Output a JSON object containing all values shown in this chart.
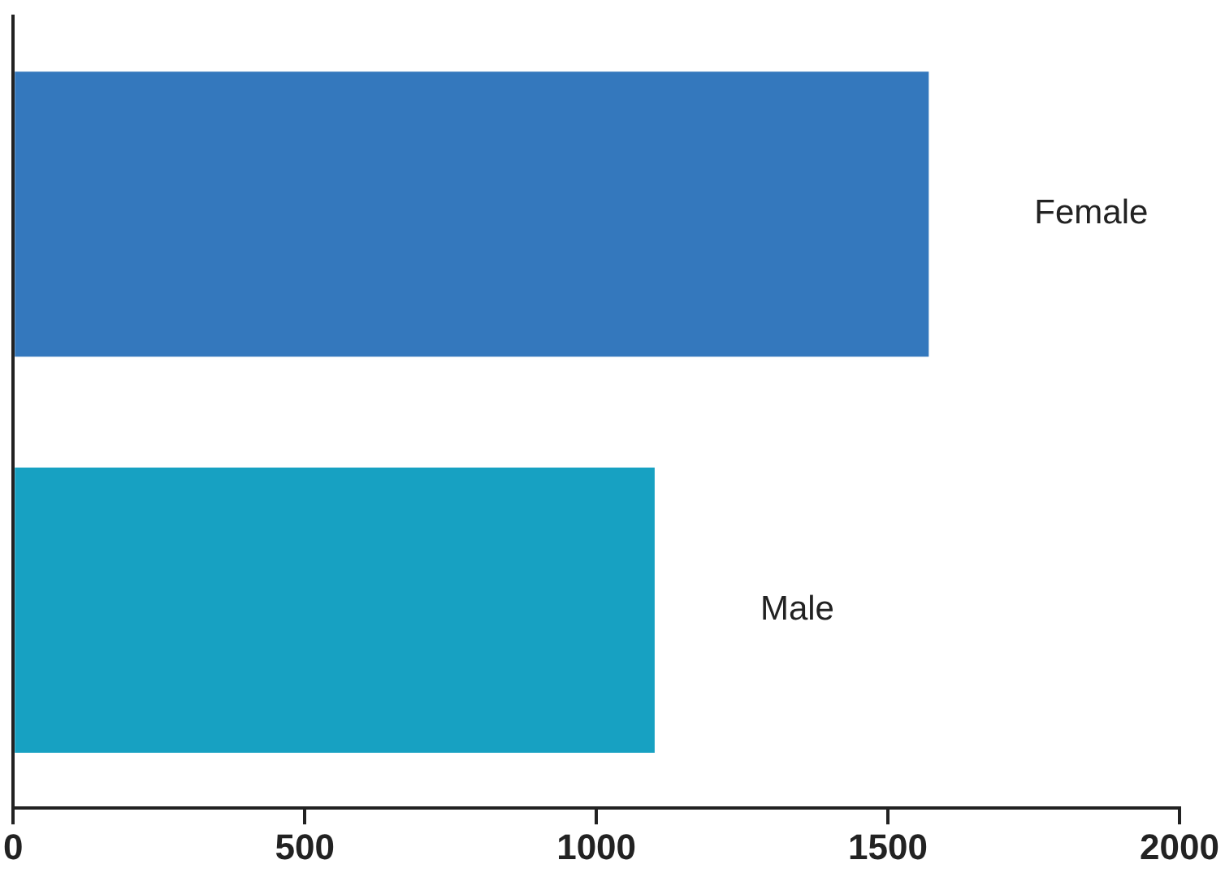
{
  "chart_data": {
    "type": "bar",
    "orientation": "horizontal",
    "categories": [
      "Female",
      "Male"
    ],
    "values": [
      1570,
      1100
    ],
    "colors": [
      "#3478bd",
      "#17a1c2"
    ],
    "xlim": [
      0,
      2000
    ],
    "xticks": [
      0,
      500,
      1000,
      1500,
      2000
    ],
    "grid": false,
    "legend": false,
    "tick_labels": "x"
  }
}
